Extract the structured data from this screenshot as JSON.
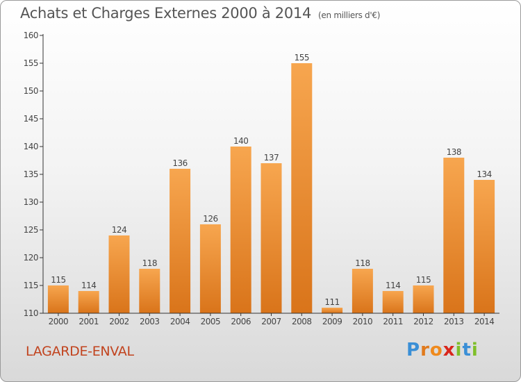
{
  "title": "Achats et Charges Externes 2000 à 2014",
  "unit_label": "(en milliers d'€)",
  "place": "LAGARDE-ENVAL",
  "logo": {
    "text": "Proxiti",
    "letter_colors": [
      "#3a8fd6",
      "#e07a1c",
      "#ef8a1d",
      "#d9261c",
      "#7fbf2a",
      "#3a8fd6",
      "#7fbf2a"
    ]
  },
  "colors": {
    "bar_light": "#f7a64f",
    "bar_dark": "#d9741a",
    "axis": "#333333",
    "text": "#444444",
    "place": "#c1431e"
  },
  "chart_data": {
    "type": "bar",
    "categories": [
      "2000",
      "2001",
      "2002",
      "2003",
      "2004",
      "2005",
      "2006",
      "2007",
      "2008",
      "2009",
      "2010",
      "2011",
      "2012",
      "2013",
      "2014"
    ],
    "values": [
      115,
      114,
      124,
      118,
      136,
      126,
      140,
      137,
      155,
      111,
      118,
      114,
      115,
      138,
      134
    ],
    "data_labels": [
      "115",
      "114",
      "124",
      "118",
      "136",
      "126",
      "140",
      "137",
      "155",
      "111",
      "118",
      "114",
      "115",
      "138",
      "134"
    ],
    "ylim": [
      110,
      160
    ],
    "yticks": [
      110,
      115,
      120,
      125,
      130,
      135,
      140,
      145,
      150,
      155,
      160
    ],
    "title": "Achats et Charges Externes 2000 à 2014",
    "xlabel": "",
    "ylabel": "",
    "grid": false,
    "legend": "none"
  }
}
